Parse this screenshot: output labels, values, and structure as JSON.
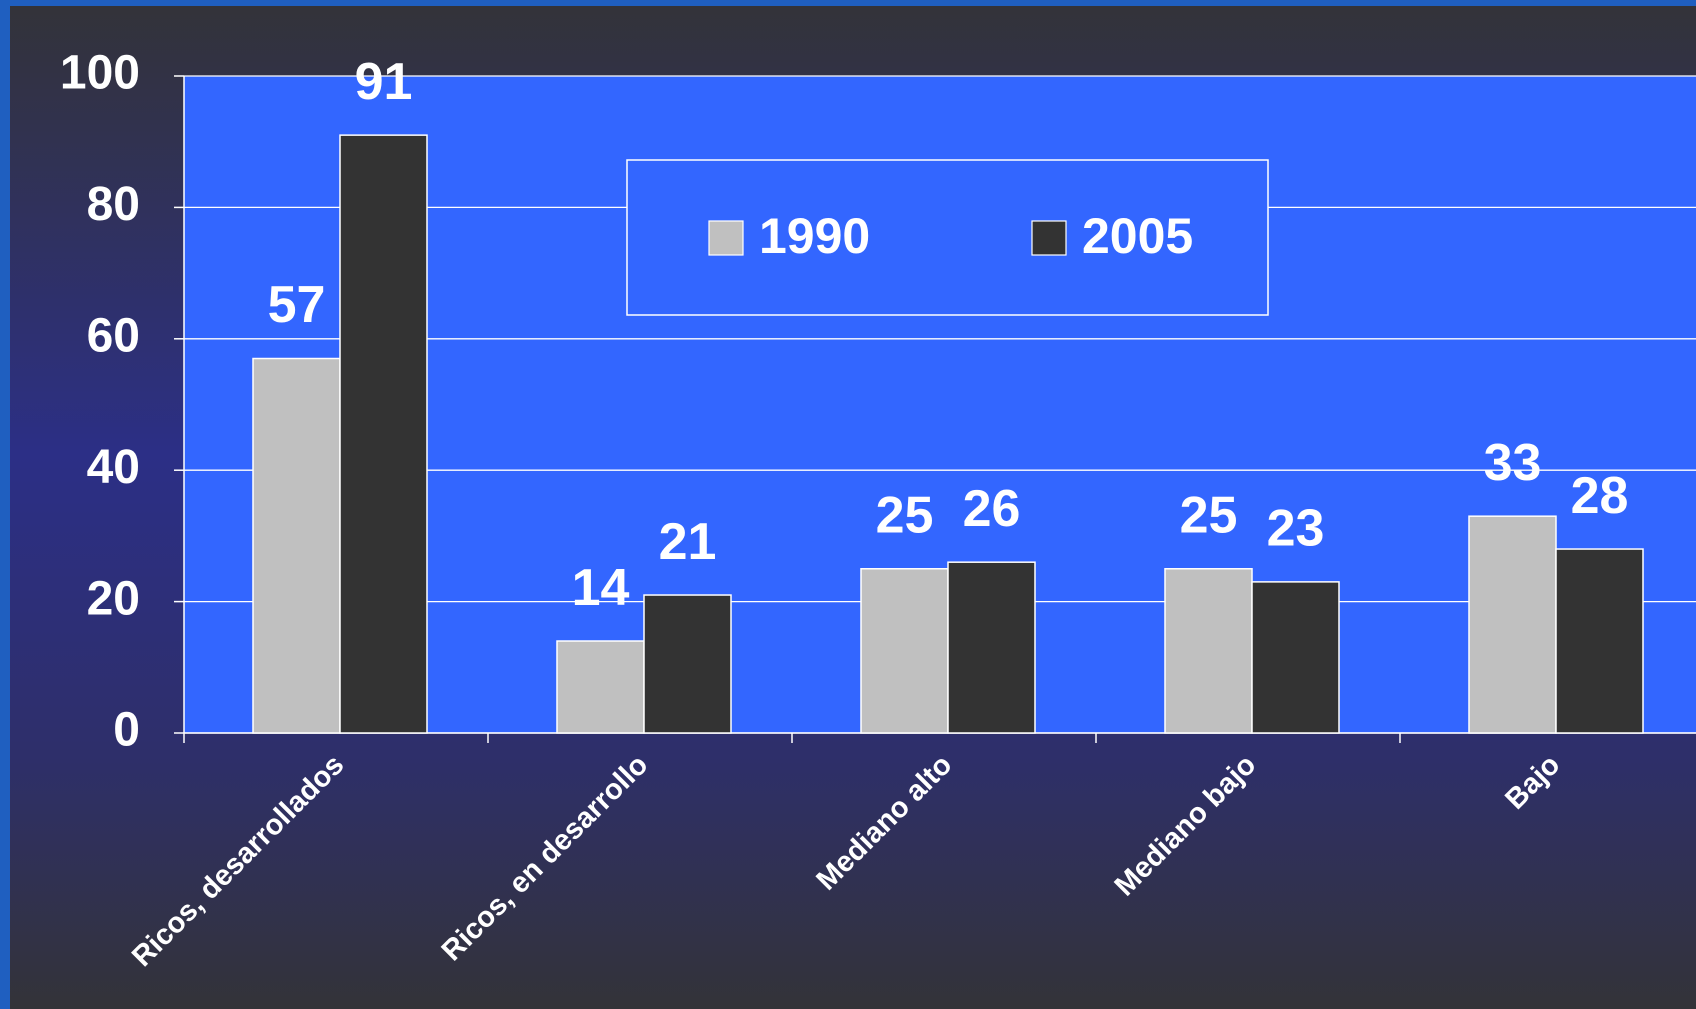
{
  "chart_data": {
    "type": "bar",
    "categories": [
      "Ricos, desarrollados",
      "Ricos, en desarrollo",
      "Mediano alto",
      "Mediano bajo",
      "Bajo"
    ],
    "series": [
      {
        "name": "1990",
        "color": "#c0c0c0",
        "values": [
          57,
          14,
          25,
          25,
          33
        ]
      },
      {
        "name": "2005",
        "color": "#333333",
        "values": [
          91,
          21,
          26,
          23,
          28
        ]
      }
    ],
    "ylim": [
      0,
      100
    ],
    "yticks": [
      0,
      20,
      40,
      60,
      80,
      100
    ],
    "grid": true
  }
}
